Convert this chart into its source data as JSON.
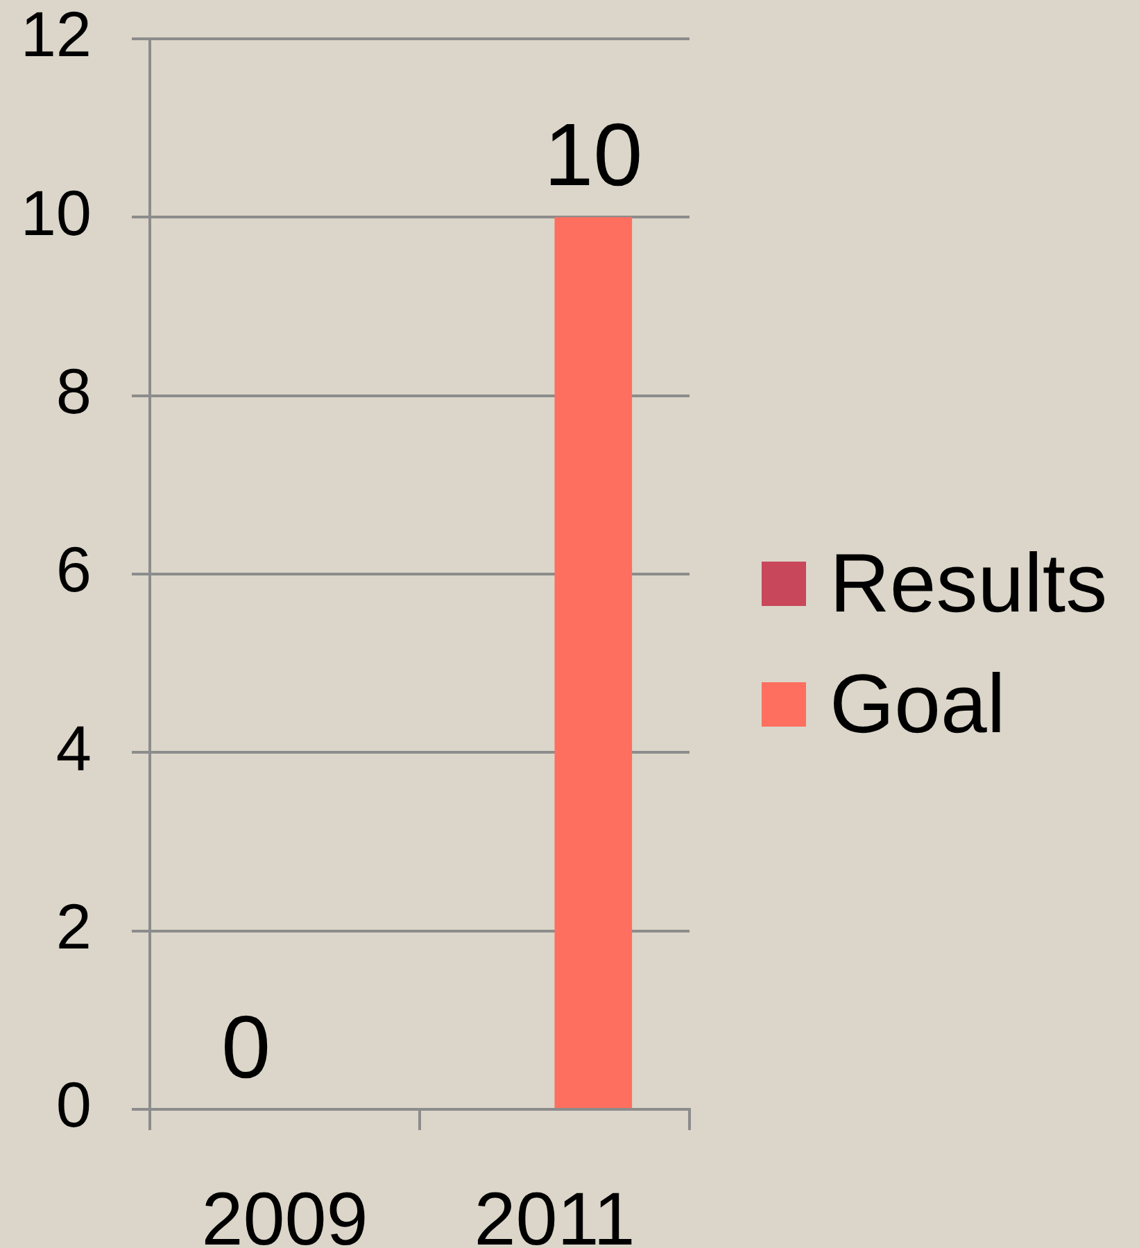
{
  "chart_data": {
    "type": "bar",
    "categories": [
      "2009",
      "2011"
    ],
    "series": [
      {
        "name": "Results",
        "color": "#c9475a",
        "values": [
          0,
          null
        ]
      },
      {
        "name": "Goal",
        "color": "#fe6f5f",
        "values": [
          null,
          10
        ]
      }
    ],
    "ylim": [
      0,
      12
    ],
    "yticks": [
      0,
      2,
      4,
      6,
      8,
      10,
      12
    ],
    "grid": "y",
    "legend": "right",
    "data_labels": true
  }
}
